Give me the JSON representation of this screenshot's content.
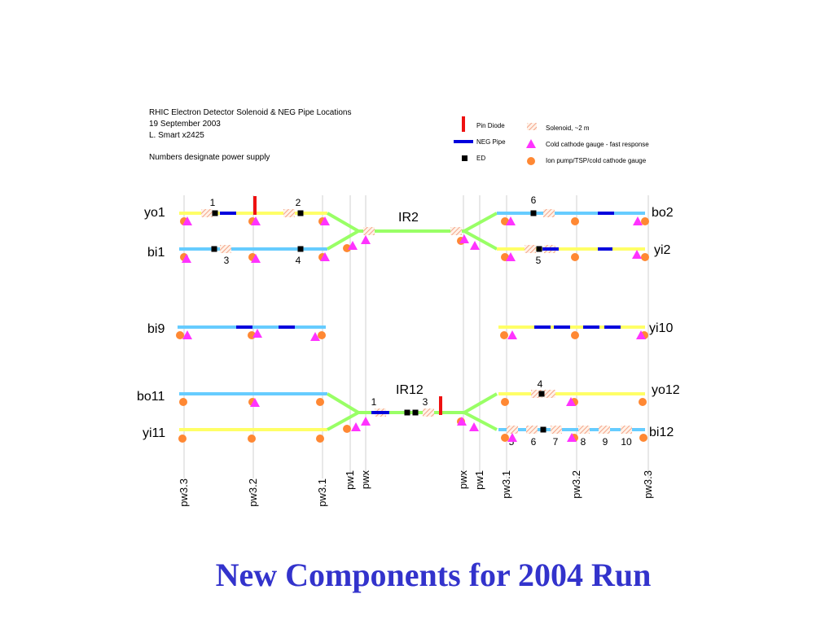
{
  "header": {
    "lines": [
      "RHIC Electron Detector Solenoid & NEG Pipe Locations",
      "19 September 2003",
      "L. Smart x2425",
      "Numbers designate power supply"
    ]
  },
  "legend": {
    "items": [
      "Pin Diode",
      "NEG Pipe",
      "ED",
      "Solenoid, ~2 m",
      "Cold cathode gauge - fast response",
      "Ion pump/TSP/cold cathode gauge"
    ]
  },
  "beams": {
    "left": [
      "yo1",
      "bi1",
      "bi9",
      "bo11",
      "yi11"
    ],
    "right": [
      "bo2",
      "yi2",
      "yi10",
      "yo12",
      "bi12"
    ]
  },
  "interaction_regions": [
    "IR2",
    "IR12"
  ],
  "power_supply_numbers": {
    "ir2_left": [
      1,
      2,
      3,
      4
    ],
    "ir2_right": [
      6,
      5
    ],
    "ir12_center": [
      1,
      3
    ],
    "ir12_right": [
      4,
      5,
      6,
      7,
      8,
      9,
      10
    ]
  },
  "stations": [
    "pw3.3",
    "pw3.2",
    "pw3.1",
    "pw1",
    "pwx",
    "pwx",
    "pw1",
    "pw3.1",
    "pw3.2",
    "pw3.3"
  ],
  "title": "New Components for 2004 Run"
}
